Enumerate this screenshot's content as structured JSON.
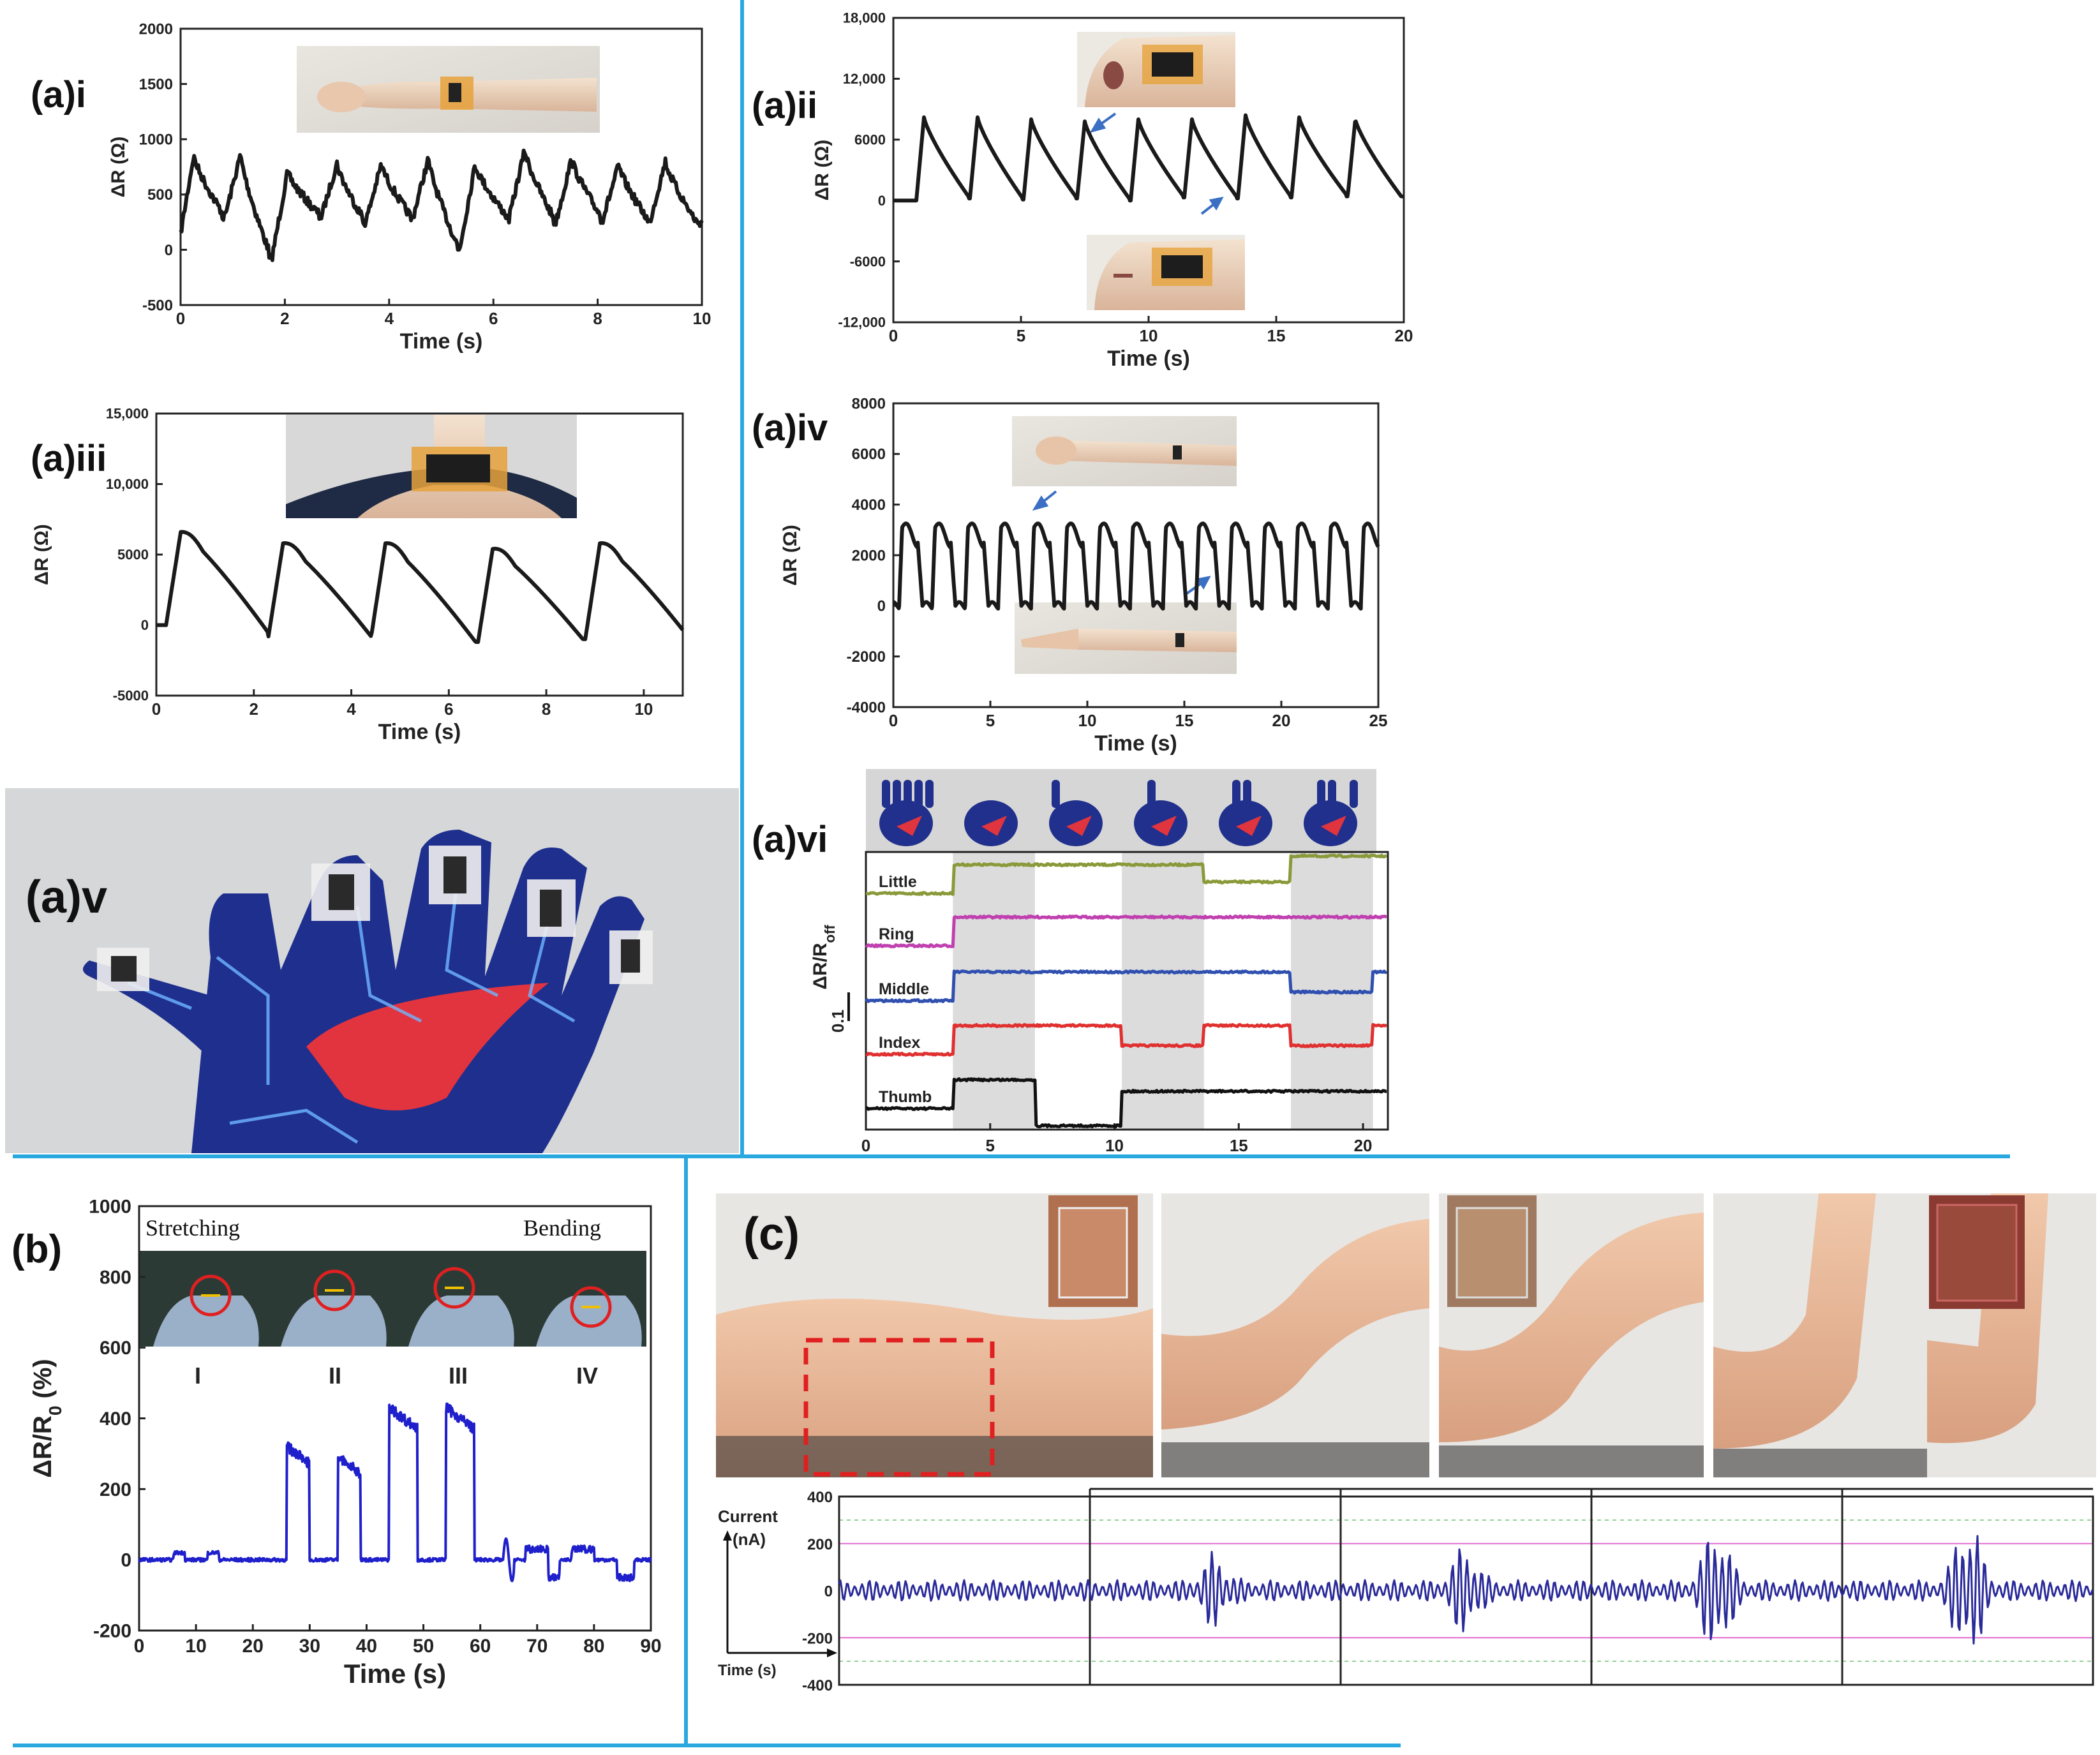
{
  "figure": {
    "colors": {
      "divider": "#29a8e0",
      "black": "#1a1a1a",
      "blue_b": "#1f1fcc",
      "blue_c": "#2a2a9a",
      "little": "#8a9a3a",
      "ring": "#c040b0",
      "middle": "#3050b0",
      "index": "#e03030",
      "thumb": "#111111",
      "band": "#dcdcdc",
      "arrow": "#3a6fc4",
      "dashed_box": "#e02020"
    },
    "icons": [
      "wrist-photo",
      "cheek-photo-open",
      "cheek-photo-closed",
      "neck-photo",
      "fist-photo",
      "open-hand-photo",
      "glove-photo",
      "gesture-photo-strip",
      "stretch-bend-photo-strip",
      "elbow-bending-photo-sequence",
      "sample-inset-photo"
    ]
  },
  "chart_data": [
    {
      "id": "ai",
      "type": "line",
      "title": "(a)i",
      "xlabel": "Time (s)",
      "ylabel": "ΔR (Ω)",
      "xlim": [
        0,
        10
      ],
      "ylim": [
        -500,
        2000
      ],
      "xticks": [
        "0",
        "2",
        "4",
        "6",
        "8",
        "10"
      ],
      "yticks": [
        "-500",
        "0",
        "500",
        "1000",
        "1500",
        "2000"
      ],
      "peaks_x": [
        0.25,
        1.15,
        2.05,
        3.0,
        3.85,
        4.75,
        5.65,
        6.6,
        7.5,
        8.4,
        9.3
      ],
      "peak_y": [
        850,
        860,
        700,
        780,
        770,
        820,
        770,
        900,
        820,
        760,
        800
      ],
      "trough_y": [
        0,
        300,
        -80,
        300,
        250,
        280,
        0,
        280,
        250,
        280,
        250
      ]
    },
    {
      "id": "aii",
      "type": "line",
      "title": "(a)ii",
      "xlabel": "Time (s)",
      "ylabel": "ΔR (Ω)",
      "xlim": [
        0,
        20
      ],
      "ylim": [
        -12000,
        18000
      ],
      "xticks": [
        "0",
        "5",
        "10",
        "15",
        "20"
      ],
      "yticks": [
        "-12,000",
        "-6000",
        "0",
        "6000",
        "12,000",
        "18,000"
      ],
      "peaks_x": [
        1.2,
        3.3,
        5.4,
        7.5,
        9.6,
        11.7,
        13.8,
        15.9,
        18.1
      ],
      "peak_y": [
        8200,
        8200,
        8000,
        7800,
        8000,
        8000,
        8400,
        8200,
        8000
      ],
      "trough_y": [
        0,
        200,
        100,
        200,
        0,
        300,
        200,
        300,
        400
      ]
    },
    {
      "id": "aiii",
      "type": "line",
      "title": "(a)iii",
      "xlabel": "Time (s)",
      "ylabel": "ΔR (Ω)",
      "xlim": [
        0,
        10.8
      ],
      "ylim": [
        -5000,
        15000
      ],
      "xticks": [
        "0",
        "2",
        "4",
        "6",
        "8",
        "10"
      ],
      "yticks": [
        "-5000",
        "0",
        "5000",
        "10,000",
        "15,000"
      ],
      "peaks_x": [
        0.5,
        2.6,
        4.7,
        6.9,
        9.1
      ],
      "peak_y": [
        6600,
        5800,
        5800,
        5400,
        5800
      ],
      "trough_y": [
        0,
        -800,
        -1000,
        -1200,
        -1000
      ]
    },
    {
      "id": "aiv",
      "type": "line",
      "title": "(a)iv",
      "xlabel": "Time (s)",
      "ylabel": "ΔR (Ω)",
      "xlim": [
        0,
        25
      ],
      "ylim": [
        -4000,
        8000
      ],
      "xticks": [
        "0",
        "5",
        "10",
        "15",
        "20",
        "25"
      ],
      "yticks": [
        "-4000",
        "-2000",
        "0",
        "2000",
        "4000",
        "6000",
        "8000"
      ],
      "period": 1.7,
      "peak_y": 3100,
      "trough_y": 0
    },
    {
      "id": "avi",
      "type": "line",
      "title": "(a)vi",
      "ylabel": "ΔR/Roff",
      "scale_bar": "0.1",
      "xlim": [
        0,
        21
      ],
      "xticks": [
        "0",
        "5",
        "10",
        "15",
        "20"
      ],
      "bands": [
        [
          3.5,
          6.8
        ],
        [
          10.3,
          13.6
        ],
        [
          17.1,
          20.4
        ]
      ],
      "series": [
        {
          "name": "Little",
          "segments": [
            [
              0,
              3.5,
              0
            ],
            [
              3.5,
              13.6,
              1
            ],
            [
              13.6,
              17.1,
              0.4
            ],
            [
              17.1,
              21,
              1.3
            ]
          ]
        },
        {
          "name": "Ring",
          "segments": [
            [
              0,
              3.5,
              0
            ],
            [
              3.5,
              21,
              1
            ]
          ]
        },
        {
          "name": "Middle",
          "segments": [
            [
              0,
              3.5,
              0
            ],
            [
              3.5,
              17.1,
              1
            ],
            [
              17.1,
              20.4,
              0.3
            ],
            [
              20.4,
              21,
              1
            ]
          ]
        },
        {
          "name": "Index",
          "segments": [
            [
              0,
              3.5,
              0
            ],
            [
              3.5,
              10.3,
              1
            ],
            [
              10.3,
              13.6,
              0.3
            ],
            [
              13.6,
              17.1,
              1
            ],
            [
              17.1,
              20.4,
              0.3
            ],
            [
              20.4,
              21,
              1
            ]
          ]
        },
        {
          "name": "Thumb",
          "segments": [
            [
              0,
              3.5,
              0
            ],
            [
              3.5,
              6.8,
              1
            ],
            [
              6.8,
              10.3,
              -0.6
            ],
            [
              10.3,
              21,
              0.6
            ]
          ]
        }
      ]
    },
    {
      "id": "b",
      "type": "line",
      "title": "(b)",
      "xlabel": "Time (s)",
      "ylabel": "ΔR/R0 (%)",
      "xlim": [
        0,
        90
      ],
      "ylim": [
        -200,
        1000
      ],
      "xticks": [
        "0",
        "10",
        "20",
        "30",
        "40",
        "50",
        "60",
        "70",
        "80",
        "90"
      ],
      "yticks": [
        "-200",
        "0",
        "200",
        "400",
        "600",
        "800",
        "1000"
      ],
      "pulses": [
        [
          26,
          30,
          320
        ],
        [
          35,
          39,
          290
        ],
        [
          44,
          49,
          430
        ],
        [
          54,
          59,
          430
        ]
      ],
      "annotations": [
        "Stretching",
        "Bending",
        "I",
        "II",
        "III",
        "IV"
      ]
    },
    {
      "id": "c",
      "type": "line",
      "title": "(c)",
      "ylabel": "Current (nA)",
      "xlabel": "Time (s)",
      "ylim": [
        -400,
        400
      ],
      "yticks": [
        "400",
        "200",
        "0",
        "-200",
        "-400"
      ],
      "burst_amplitudes": [
        130,
        180,
        300,
        330
      ],
      "baseline_amplitude": 45
    }
  ]
}
